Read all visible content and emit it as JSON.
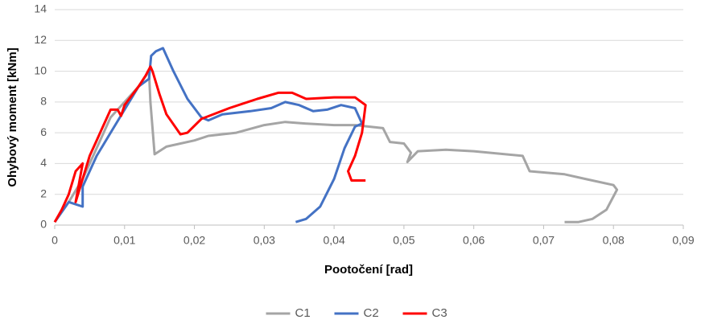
{
  "chart_data": {
    "type": "line",
    "x_label": "Pootočení [rad]",
    "y_label": "Ohybový moment [kNm]",
    "xlim": [
      0,
      0.09
    ],
    "xticks": [
      0,
      {
        "value": 0.01,
        "label": "0,01"
      },
      {
        "value": 0.02,
        "label": "0,02"
      },
      {
        "value": 0.03,
        "label": "0,03"
      },
      {
        "value": 0.04,
        "label": "0,04"
      },
      {
        "value": 0.05,
        "label": "0,05"
      },
      {
        "value": 0.06,
        "label": "0,06"
      },
      {
        "value": 0.07,
        "label": "0,07"
      },
      {
        "value": 0.08,
        "label": "0,08"
      },
      {
        "value": 0.09,
        "label": "0,09"
      }
    ],
    "ylim": [
      0,
      14
    ],
    "yticks": [
      0,
      2,
      4,
      6,
      8,
      10,
      12,
      14
    ],
    "grid": true,
    "legend": "bottom",
    "series": [
      {
        "name": "C1",
        "color": "#a5a5a5",
        "x": [
          0,
          0.002,
          0.004,
          0.006,
          0.008,
          0.01,
          0.012,
          0.0135,
          0.0137,
          0.0143,
          0.016,
          0.02,
          0.022,
          0.026,
          0.03,
          0.033,
          0.036,
          0.04,
          0.043,
          0.047,
          0.048,
          0.05,
          0.051,
          0.0505,
          0.052,
          0.056,
          0.06,
          0.067,
          0.068,
          0.073,
          0.076,
          0.08,
          0.0805,
          0.079,
          0.077,
          0.075,
          0.073
        ],
        "values": [
          0.2,
          1.5,
          3,
          5,
          7,
          8,
          9,
          10,
          8,
          4.6,
          5.1,
          5.5,
          5.8,
          6,
          6.5,
          6.7,
          6.6,
          6.5,
          6.5,
          6.3,
          5.4,
          5.3,
          4.7,
          4.1,
          4.8,
          4.9,
          4.8,
          4.5,
          3.5,
          3.3,
          3,
          2.6,
          2.3,
          1,
          0.4,
          0.2,
          0.2
        ]
      },
      {
        "name": "C2",
        "color": "#4472c4",
        "x": [
          0,
          0.002,
          0.004,
          0.004,
          0.006,
          0.008,
          0.01,
          0.012,
          0.0135,
          0.0138,
          0.0145,
          0.0155,
          0.017,
          0.019,
          0.021,
          0.022,
          0.024,
          0.028,
          0.031,
          0.033,
          0.035,
          0.037,
          0.039,
          0.041,
          0.043,
          0.044,
          0.043,
          0.0415,
          0.04,
          0.038,
          0.036,
          0.0345
        ],
        "values": [
          0.2,
          1.5,
          1.2,
          2.5,
          4.5,
          6,
          7.5,
          9,
          9.5,
          11,
          11.3,
          11.5,
          10,
          8.2,
          7,
          6.8,
          7.2,
          7.4,
          7.6,
          8,
          7.8,
          7.4,
          7.5,
          7.8,
          7.6,
          6.6,
          6.4,
          5,
          3,
          1.2,
          0.4,
          0.2
        ]
      },
      {
        "name": "C3",
        "color": "#ff0000",
        "x": [
          0,
          0.001,
          0.002,
          0.003,
          0.004,
          0.003,
          0.004,
          0.005,
          0.006,
          0.007,
          0.008,
          0.009,
          0.0095,
          0.01,
          0.012,
          0.013,
          0.0137,
          0.014,
          0.015,
          0.016,
          0.018,
          0.019,
          0.021,
          0.025,
          0.029,
          0.032,
          0.034,
          0.036,
          0.04,
          0.043,
          0.0445,
          0.044,
          0.043,
          0.042,
          0.0425,
          0.0445
        ],
        "values": [
          0.2,
          1,
          2,
          3.5,
          4,
          1.5,
          3,
          4.5,
          5.5,
          6.5,
          7.5,
          7.5,
          7.1,
          7.8,
          9,
          9.7,
          10.3,
          10,
          8.5,
          7.2,
          5.9,
          6,
          6.9,
          7.6,
          8.2,
          8.6,
          8.6,
          8.2,
          8.3,
          8.3,
          7.8,
          6,
          4.5,
          3.5,
          2.9,
          2.9
        ]
      }
    ]
  }
}
